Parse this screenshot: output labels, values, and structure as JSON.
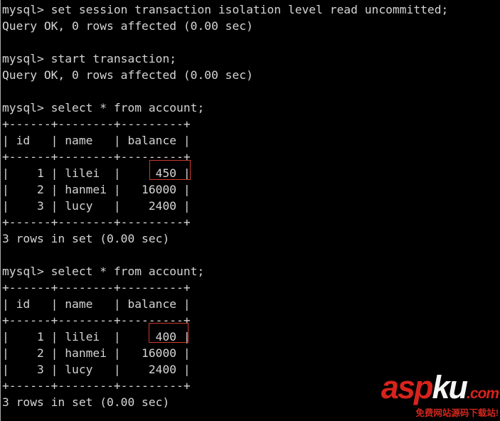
{
  "colors": {
    "background": "#000000",
    "terminal-text": "#d4d4d4",
    "border-gray": "#a9a9a9",
    "highlight-red": "#cb3a2e",
    "logo-red": "#d8231c",
    "logo-white": "#f5f5f5",
    "tagline-red": "#cf261d"
  },
  "terminal": {
    "lines": [
      "mysql> set session transaction isolation level read uncommitted;",
      "Query OK, 0 rows affected (0.00 sec)",
      "",
      "mysql> start transaction;",
      "Query OK, 0 rows affected (0.00 sec)",
      "",
      "mysql> select * from account;",
      "+------+--------+---------+",
      "| id   | name   | balance |",
      "+------+--------+---------+",
      "|    1 | lilei  |     450 |",
      "|    2 | hanmei |   16000 |",
      "|    3 | lucy   |    2400 |",
      "+------+--------+---------+",
      "3 rows in set (0.00 sec)",
      "",
      "mysql> select * from account;",
      "+------+--------+---------+",
      "| id   | name   | balance |",
      "+------+--------+---------+",
      "|    1 | lilei  |     400 |",
      "|    2 | hanmei |   16000 |",
      "|    3 | lucy   |    2400 |",
      "+------+--------+---------+",
      "3 rows in set (0.00 sec)"
    ],
    "result_tables": [
      {
        "columns": [
          "id",
          "name",
          "balance"
        ],
        "rows": [
          [
            "1",
            "lilei",
            "450"
          ],
          [
            "2",
            "hanmei",
            "16000"
          ],
          [
            "3",
            "lucy",
            "2400"
          ]
        ],
        "status": "3 rows in set (0.00 sec)"
      },
      {
        "columns": [
          "id",
          "name",
          "balance"
        ],
        "rows": [
          [
            "1",
            "lilei",
            "400"
          ],
          [
            "2",
            "hanmei",
            "16000"
          ],
          [
            "3",
            "lucy",
            "2400"
          ]
        ],
        "status": "3 rows in set (0.00 sec)"
      }
    ]
  },
  "highlights": {
    "first_value": "450",
    "second_value": "400"
  },
  "watermark": {
    "logo_prefix": "asp",
    "logo_suffix": "ku",
    "logo_tld": ".com",
    "tagline": "免费网站源码下载站!"
  }
}
